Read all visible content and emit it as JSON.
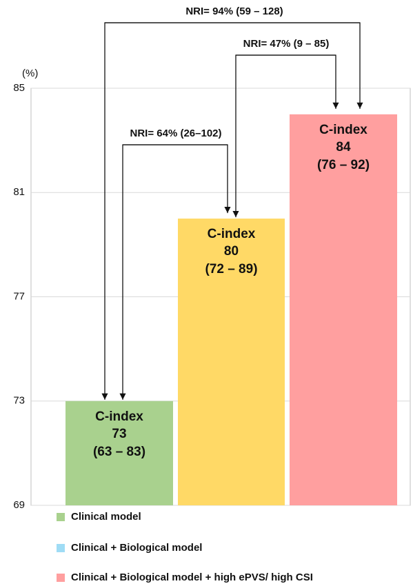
{
  "chart_data": {
    "type": "bar",
    "y_unit_label": "(%)",
    "categories": [
      "Clinical model",
      "Clinical + Biological model",
      "Clinical + Biological model + high ePVS/ high CSI"
    ],
    "values": [
      73,
      80,
      84
    ],
    "bar_title": "C-index",
    "ci_labels": [
      "(63 – 83)",
      "(72 – 89)",
      "(76 – 92)"
    ],
    "colors": [
      "#a9d18e",
      "#ffd966",
      "#ff9f9f"
    ],
    "legend_colors": [
      "#a9d18e",
      "#9fdcf5",
      "#ff9f9f"
    ],
    "annotations": [
      "NRI= 64% (26–102)",
      "NRI= 47% (9 – 85)",
      "NRI= 94% (59 – 128)"
    ],
    "ylim": [
      69,
      85
    ],
    "yticks": [
      69,
      73,
      77,
      81,
      85
    ],
    "grid": true
  }
}
